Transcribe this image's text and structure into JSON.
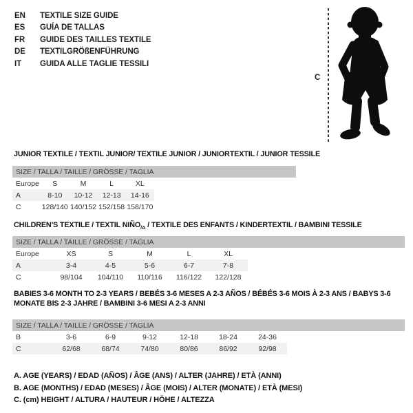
{
  "colors": {
    "background": "#ffffff",
    "size_bar_gray": "#c6c6c6",
    "alt_row_gray": "#f1f1f1",
    "silhouette_black": "#0d0d0d"
  },
  "language_guide": {
    "items": [
      {
        "code": "EN",
        "label": "TEXTILE SIZE GUIDE"
      },
      {
        "code": "ES",
        "label": "GUÍA DE TALLAS"
      },
      {
        "code": "FR",
        "label": "GUIDE DES TAILLES TEXTILE"
      },
      {
        "code": "DE",
        "label": "TEXTILGRÖßENFÜHRUNG"
      },
      {
        "code": "IT",
        "label": "GUIDA ALLE TAGLIE TESSILI"
      }
    ]
  },
  "figure": {
    "height_marker_label": "C",
    "silhouette": "toddler-standing-silhouette"
  },
  "tables": [
    {
      "title_parts": {
        "pre": "JUNIOR TEXTILE / TEXTIL JUNIOR/ TEXTILE JUNIOR / JUNIORTEXTIL / JUNIOR TESSILE",
        "sub": "",
        "post": ""
      },
      "size_header": "SIZE / TALLA / TAILLE / GRÖSSE / TAGLIA",
      "rows": [
        {
          "label": "Europe",
          "values": [
            "S",
            "M",
            "L",
            "XL"
          ]
        },
        {
          "label": "A",
          "values": [
            "8-10",
            "10-12",
            "12-13",
            "14-16"
          ]
        },
        {
          "label": "C",
          "values": [
            "128/140",
            "140/152",
            "152/158",
            "158/170"
          ]
        }
      ]
    },
    {
      "title_parts": {
        "pre": "CHILDREN'S TEXTILE / TEXTIL NIÑO",
        "sub": "/A",
        "post": " / TEXTILE DES ENFANTS / KINDERTEXTIL / BAMBINI TESSILE"
      },
      "size_header": "SIZE / TALLA / TAILLE / GRÖSSE / TAGLIA",
      "rows": [
        {
          "label": "Europe",
          "values": [
            "XS",
            "S",
            "M",
            "L",
            "XL"
          ]
        },
        {
          "label": "A",
          "values": [
            "3-4",
            "4-5",
            "5-6",
            "6-7",
            "7-8"
          ]
        },
        {
          "label": "C",
          "values": [
            "98/104",
            "104/110",
            "110/116",
            "116/122",
            "122/128"
          ]
        }
      ]
    },
    {
      "title_parts": {
        "pre": "BABIES 3-6 MONTH TO 2-3 YEARS / BEBÉS 3-6 MESES A 2-3 AÑOS / BÉBÉS 3-6 MOIS À 2-3 ANS / BABYS 3-6 MONATE BIS 2-3 JAHRE / BAMBINI 3-6 MESI A 2-3 ANNI",
        "sub": "",
        "post": ""
      },
      "size_header": "SIZE / TALLA / TAILLE / GRÖSSE / TAGLIA",
      "rows": [
        {
          "label": "B",
          "values": [
            "3-6",
            "6-9",
            "9-12",
            "12-18",
            "18-24",
            "24-36"
          ]
        },
        {
          "label": "C",
          "values": [
            "62/68",
            "68/74",
            "74/80",
            "80/86",
            "86/92",
            "92/98"
          ]
        }
      ]
    }
  ],
  "footnotes": [
    "A. AGE (YEARS) / EDAD (AÑOS) / ÂGE (ANS) / ALTER (JAHRE) / ETÀ (ANNI)",
    "B. AGE (MONTHS) / EDAD (MESES) / ÂGE (MOIS) / ALTER (MONATE) / ETÀ (MESI)",
    "C. (cm) HEIGHT / ALTURA / HAUTEUR / HÖHE / ALTEZZA"
  ]
}
